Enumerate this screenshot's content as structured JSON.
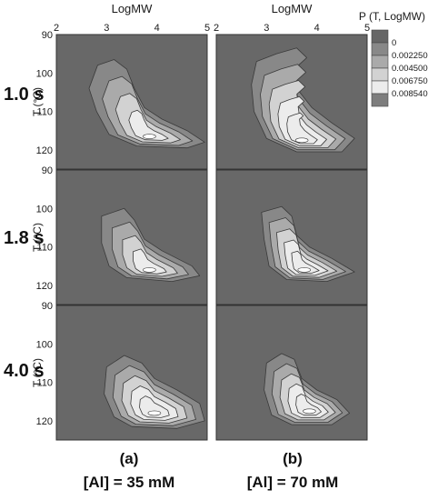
{
  "chart_data": {
    "type": "heatmap",
    "contour": true,
    "legend": {
      "title": "P (T, LogMW)",
      "position": "top-right",
      "levels": [
        "0",
        "0.002250",
        "0.004500",
        "0.006750",
        "0.008540"
      ],
      "colors": [
        "#666666",
        "#888888",
        "#aaaaaa",
        "#d2d2d2",
        "#ececec",
        "#7d7d7d"
      ]
    },
    "background_color": "#686868",
    "xlabel": "LogMW",
    "ylabel": "T (°C)",
    "xlim": [
      2,
      5
    ],
    "ylim": [
      90,
      125
    ],
    "y_reversed": true,
    "xticks": [
      "2",
      "3",
      "4",
      "5"
    ],
    "yticks": [
      "90",
      "100",
      "110",
      "120"
    ],
    "row_labels": [
      "1.0 s",
      "1.8 s",
      "4.0 s"
    ],
    "column_labels": [
      {
        "letter": "(a)",
        "condition": "[Al] = 35 mM"
      },
      {
        "letter": "(b)",
        "condition": "[Al] = 70 mM"
      }
    ],
    "panels": [
      {
        "row": 0,
        "col": 0,
        "peak": {
          "x": 3.85,
          "y": 116.5
        },
        "level_count": 4,
        "outline": [
          [
            2.82,
            98
          ],
          [
            3.15,
            96.5
          ],
          [
            3.4,
            99
          ],
          [
            3.55,
            104
          ],
          [
            3.75,
            109
          ],
          [
            4.1,
            112
          ],
          [
            4.6,
            115
          ],
          [
            4.95,
            118
          ],
          [
            4.6,
            119.5
          ],
          [
            3.6,
            119
          ],
          [
            3.05,
            116
          ],
          [
            2.8,
            110
          ],
          [
            2.65,
            104
          ]
        ]
      },
      {
        "row": 0,
        "col": 1,
        "peak": {
          "x": 3.7,
          "y": 117.5
        },
        "level_count": 5,
        "outline": [
          [
            2.8,
            97
          ],
          [
            3.2,
            95
          ],
          [
            3.6,
            93.5
          ],
          [
            3.8,
            96
          ],
          [
            3.55,
            99
          ],
          [
            3.6,
            104
          ],
          [
            3.9,
            109
          ],
          [
            4.3,
            113
          ],
          [
            4.75,
            117
          ],
          [
            4.5,
            120.5
          ],
          [
            3.6,
            120.5
          ],
          [
            3.0,
            117
          ],
          [
            2.75,
            110
          ],
          [
            2.7,
            103
          ]
        ]
      },
      {
        "row": 1,
        "col": 0,
        "peak": {
          "x": 3.85,
          "y": 116
        },
        "level_count": 4,
        "outline": [
          [
            2.9,
            102
          ],
          [
            3.35,
            100
          ],
          [
            3.55,
            103
          ],
          [
            3.75,
            108
          ],
          [
            4.1,
            111
          ],
          [
            4.7,
            115
          ],
          [
            4.85,
            117.5
          ],
          [
            4.3,
            119
          ],
          [
            3.4,
            118
          ],
          [
            3.05,
            115
          ],
          [
            2.9,
            109
          ]
        ]
      },
      {
        "row": 1,
        "col": 1,
        "peak": {
          "x": 3.75,
          "y": 116
        },
        "level_count": 5,
        "outline": [
          [
            2.9,
            101
          ],
          [
            3.3,
            99.5
          ],
          [
            3.5,
            102
          ],
          [
            3.6,
            107
          ],
          [
            3.85,
            110
          ],
          [
            4.3,
            113
          ],
          [
            4.75,
            116.5
          ],
          [
            4.2,
            119
          ],
          [
            3.4,
            118.5
          ],
          [
            3.05,
            115
          ],
          [
            2.95,
            108
          ]
        ]
      },
      {
        "row": 2,
        "col": 0,
        "peak": {
          "x": 3.95,
          "y": 118
        },
        "level_count": 5,
        "outline": [
          [
            3.0,
            106
          ],
          [
            3.35,
            103
          ],
          [
            3.7,
            105
          ],
          [
            3.95,
            109
          ],
          [
            4.4,
            112
          ],
          [
            4.85,
            115.5
          ],
          [
            4.95,
            120
          ],
          [
            4.4,
            122
          ],
          [
            3.5,
            121.5
          ],
          [
            3.15,
            119
          ],
          [
            2.95,
            113
          ]
        ]
      },
      {
        "row": 2,
        "col": 1,
        "peak": {
          "x": 3.85,
          "y": 117.5
        },
        "level_count": 5,
        "outline": [
          [
            3.0,
            105
          ],
          [
            3.3,
            102.5
          ],
          [
            3.55,
            104
          ],
          [
            3.7,
            109
          ],
          [
            4.0,
            112
          ],
          [
            4.4,
            114.5
          ],
          [
            4.65,
            118
          ],
          [
            4.3,
            121
          ],
          [
            3.5,
            121
          ],
          [
            3.1,
            118.5
          ],
          [
            2.95,
            112
          ]
        ]
      }
    ]
  }
}
